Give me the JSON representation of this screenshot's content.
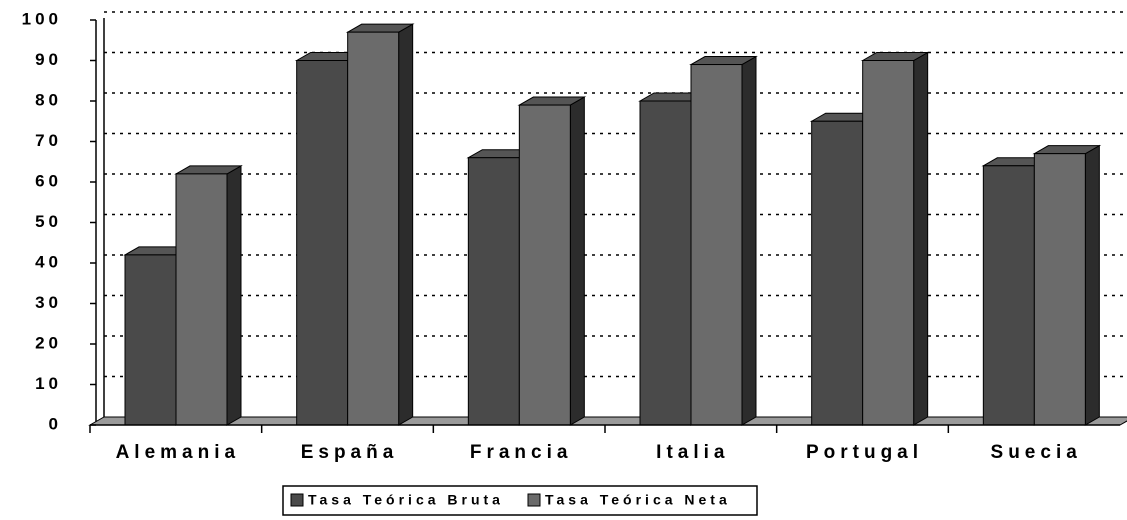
{
  "chart_data": {
    "type": "bar3d",
    "categories": [
      "Alemania",
      "España",
      "Francia",
      "Italia",
      "Portugal",
      "Suecia"
    ],
    "series": [
      {
        "name": "Tasa Teórica Bruta",
        "color": "#4a4a4a",
        "values": [
          42,
          90,
          66,
          80,
          75,
          64
        ]
      },
      {
        "name": "Tasa Teórica Neta",
        "color": "#6b6b6b",
        "values": [
          62,
          97,
          79,
          89,
          90,
          67
        ]
      }
    ],
    "ylim": [
      0,
      100
    ],
    "yticks": [
      0,
      10,
      20,
      30,
      40,
      50,
      60,
      70,
      80,
      90,
      100
    ],
    "grid": true
  }
}
